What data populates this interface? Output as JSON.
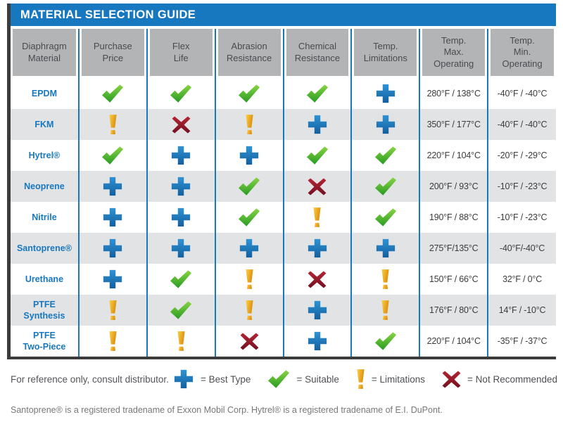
{
  "title": "MATERIAL SELECTION GUIDE",
  "colors": {
    "brand_blue": "#1878bf",
    "header_gray": "#b2b4b6",
    "row_alt_gray": "#e2e3e5",
    "edge_dark": "#3c3c3c",
    "icon_blue_light": "#2f93d5",
    "icon_blue_dark": "#135f9d",
    "icon_green_light": "#8ad443",
    "icon_green_dark": "#279b25",
    "icon_amber_light": "#fdcf42",
    "icon_amber_dark": "#dc8f10",
    "icon_red_light": "#b52534",
    "icon_red_dark": "#731020"
  },
  "table": {
    "columns": [
      [
        "Diaphragm",
        "Material"
      ],
      [
        "Purchase",
        "Price"
      ],
      [
        "Flex",
        "Life"
      ],
      [
        "Abrasion",
        "Resistance"
      ],
      [
        "Chemical",
        "Resistance"
      ],
      [
        "Temp.",
        "Limitations"
      ],
      [
        "Temp.",
        "Max.",
        "Operating"
      ],
      [
        "Temp.",
        "Min.",
        "Operating"
      ]
    ],
    "rating_columns": [
      "Purchase Price",
      "Flex Life",
      "Abrasion Resistance",
      "Chemical Resistance",
      "Temp. Limitations"
    ],
    "rows": [
      {
        "material": [
          "EPDM"
        ],
        "ratings": [
          "suitable",
          "suitable",
          "suitable",
          "suitable",
          "best"
        ],
        "temp_max": "280°F / 138°C",
        "temp_min": "-40°F / -40°C"
      },
      {
        "material": [
          "FKM"
        ],
        "ratings": [
          "limitations",
          "not_recommended",
          "limitations",
          "best",
          "best"
        ],
        "temp_max": "350°F / 177°C",
        "temp_min": "-40°F / -40°C"
      },
      {
        "material": [
          "Hytrel®"
        ],
        "ratings": [
          "suitable",
          "best",
          "best",
          "suitable",
          "suitable"
        ],
        "temp_max": "220°F / 104°C",
        "temp_min": "-20°F / -29°C"
      },
      {
        "material": [
          "Neoprene"
        ],
        "ratings": [
          "best",
          "best",
          "suitable",
          "not_recommended",
          "suitable"
        ],
        "temp_max": "200°F / 93°C",
        "temp_min": "-10°F / -23°C"
      },
      {
        "material": [
          "Nitrile"
        ],
        "ratings": [
          "best",
          "best",
          "suitable",
          "limitations",
          "suitable"
        ],
        "temp_max": "190°F / 88°C",
        "temp_min": "-10°F / -23°C"
      },
      {
        "material": [
          "Santoprene®"
        ],
        "ratings": [
          "best",
          "best",
          "best",
          "best",
          "best"
        ],
        "temp_max": "275°F/135°C",
        "temp_min": "-40°F/-40°C"
      },
      {
        "material": [
          "Urethane"
        ],
        "ratings": [
          "best",
          "suitable",
          "limitations",
          "not_recommended",
          "limitations"
        ],
        "temp_max": "150°F / 66°C",
        "temp_min": "32°F / 0°C"
      },
      {
        "material": [
          "PTFE",
          "Synthesis"
        ],
        "ratings": [
          "limitations",
          "suitable",
          "limitations",
          "best",
          "limitations"
        ],
        "temp_max": "176°F / 80°C",
        "temp_min": "14°F / -10°C"
      },
      {
        "material": [
          "PTFE",
          "Two-Piece"
        ],
        "ratings": [
          "limitations",
          "limitations",
          "not_recommended",
          "best",
          "suitable"
        ],
        "temp_max": "220°F / 104°C",
        "temp_min": "-35°F / -37°C"
      }
    ]
  },
  "legend": {
    "note": "For reference only, consult distributor.",
    "items": [
      {
        "symbol": "best",
        "label": "= Best Type"
      },
      {
        "symbol": "suitable",
        "label": "= Suitable"
      },
      {
        "symbol": "limitations",
        "label": "= Limitations"
      },
      {
        "symbol": "not_recommended",
        "label": "= Not Recommended"
      }
    ]
  },
  "footnote": "Santoprene® is a registered tradename of Exxon Mobil Corp. Hytrel® is a registered tradename of E.I. DuPont."
}
